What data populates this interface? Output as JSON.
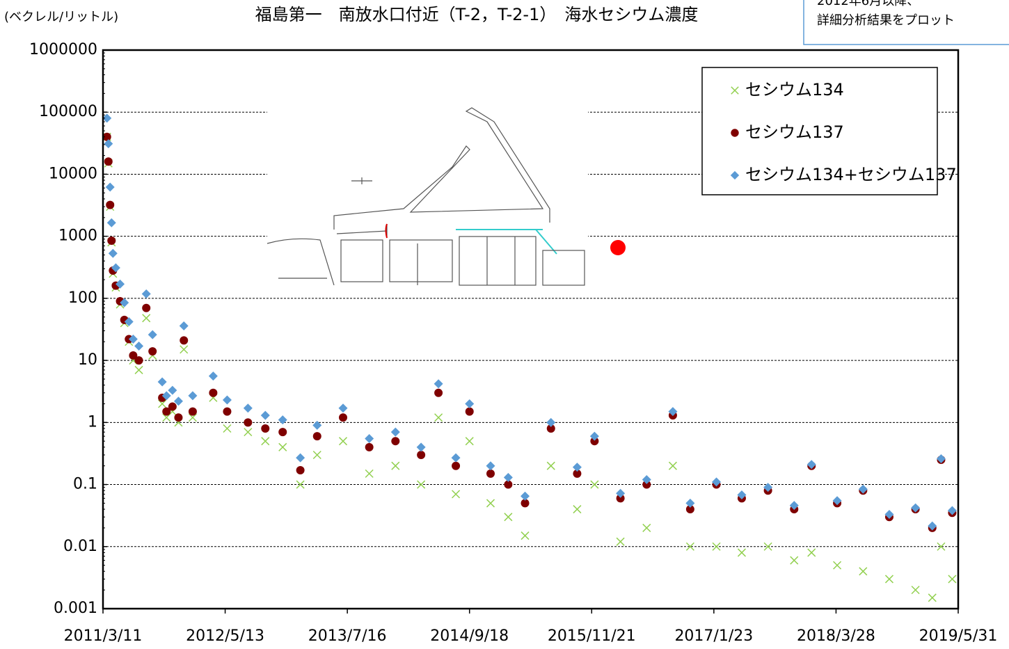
{
  "chart_data": {
    "type": "scatter",
    "title": "福島第一　南放水口付近（T-2，T-2-1）　海水セシウム濃度",
    "y_label": "(ベクレル/リットル)",
    "note": [
      "2012年6月以降、",
      "詳細分析結果をプロット"
    ],
    "yscale": "log",
    "grid": true,
    "legend": "upper right",
    "xlim": [
      "2011/3/11",
      "2019/5/31"
    ],
    "xticks": [
      "2011/3/11",
      "2012/5/13",
      "2013/7/16",
      "2014/9/18",
      "2015/11/21",
      "2017/1/23",
      "2018/3/28",
      "2019/5/31"
    ],
    "ylim": [
      0.001,
      1000000
    ],
    "yticks": [
      0.001,
      0.01,
      0.1,
      1,
      10,
      100,
      1000,
      10000,
      100000,
      1000000
    ],
    "x": [
      "2011/3/25",
      "2011/3/30",
      "2011/4/5",
      "2011/4/10",
      "2011/4/15",
      "2011/4/25",
      "2011/5/10",
      "2011/5/25",
      "2011/6/10",
      "2011/6/25",
      "2011/7/15",
      "2011/8/10",
      "2011/9/1",
      "2011/10/5",
      "2011/10/20",
      "2011/11/10",
      "2011/12/1",
      "2011/12/20",
      "2012/1/20",
      "2012/4/1",
      "2012/5/20",
      "2012/8/1",
      "2012/10/1",
      "2012/12/1",
      "2013/2/1",
      "2013/4/1",
      "2013/7/1",
      "2013/10/1",
      "2014/1/1",
      "2014/4/1",
      "2014/6/1",
      "2014/8/1",
      "2014/9/18",
      "2014/12/1",
      "2015/2/1",
      "2015/4/1",
      "2015/7/1",
      "2015/10/1",
      "2015/12/1",
      "2016/3/1",
      "2016/6/1",
      "2016/9/1",
      "2016/11/1",
      "2017/2/1",
      "2017/5/1",
      "2017/8/1",
      "2017/11/1",
      "2018/1/1",
      "2018/4/1",
      "2018/7/1",
      "2018/10/1",
      "2019/1/1",
      "2019/3/1",
      "2019/4/1",
      "2019/5/10"
    ],
    "series": [
      {
        "name": "セシウム134",
        "color": "#92d050",
        "marker": "x",
        "values": [
          40000,
          15000,
          3000,
          800,
          250,
          150,
          80,
          40,
          20,
          10,
          7,
          48,
          12,
          2,
          1.2,
          1.5,
          1,
          15,
          1.2,
          2.5,
          0.8,
          0.7,
          0.5,
          0.4,
          0.1,
          0.3,
          0.5,
          0.15,
          0.2,
          0.1,
          1.2,
          0.07,
          0.5,
          0.05,
          0.03,
          0.015,
          0.2,
          0.04,
          0.1,
          0.012,
          0.02,
          0.2,
          0.01,
          0.01,
          0.008,
          0.01,
          0.006,
          0.008,
          0.005,
          0.004,
          0.003,
          0.002,
          0.0015,
          0.01,
          0.003
        ]
      },
      {
        "name": "セシウム137",
        "color": "#7f0000",
        "marker": "circle",
        "values": [
          40000,
          16000,
          3200,
          850,
          280,
          160,
          90,
          45,
          22,
          12,
          10,
          70,
          14,
          2.5,
          1.5,
          1.8,
          1.2,
          21,
          1.5,
          3,
          1.5,
          1,
          0.8,
          0.7,
          0.17,
          0.6,
          1.2,
          0.4,
          0.5,
          0.3,
          3,
          0.2,
          1.5,
          0.15,
          0.1,
          0.05,
          0.8,
          0.15,
          0.5,
          0.06,
          0.1,
          1.3,
          0.04,
          0.1,
          0.06,
          0.08,
          0.04,
          0.2,
          0.05,
          0.08,
          0.03,
          0.04,
          0.02,
          0.25,
          0.035
        ]
      },
      {
        "name": "セシウム134+セシウム137",
        "color": "#5b9bd5",
        "marker": "diamond",
        "values": [
          80000,
          31000,
          6200,
          1650,
          530,
          310,
          170,
          85,
          42,
          22,
          17,
          118,
          26,
          4.5,
          2.7,
          3.3,
          2.2,
          36,
          2.7,
          5.6,
          2.3,
          1.7,
          1.3,
          1.1,
          0.27,
          0.9,
          1.7,
          0.55,
          0.7,
          0.4,
          4.2,
          0.27,
          2,
          0.2,
          0.13,
          0.065,
          1,
          0.19,
          0.6,
          0.072,
          0.12,
          1.5,
          0.05,
          0.11,
          0.068,
          0.09,
          0.046,
          0.21,
          0.055,
          0.084,
          0.033,
          0.042,
          0.0215,
          0.26,
          0.038
        ]
      }
    ]
  }
}
